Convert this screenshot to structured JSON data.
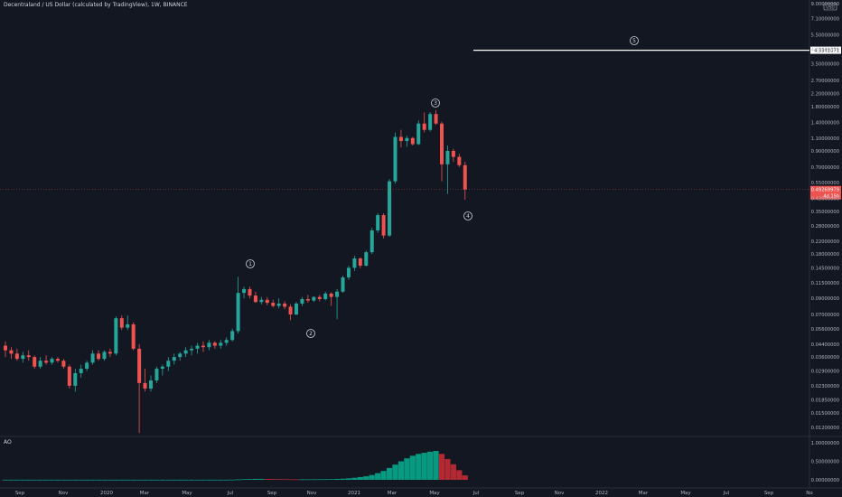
{
  "header": {
    "symbol_title": "Decentraland / US Dollar (calculated by TradingView), 1W, BINANCE"
  },
  "scale_mode_badge": "USD",
  "indicator": {
    "label": "AO"
  },
  "colors": {
    "background": "#131722",
    "up": "#26a69a",
    "down": "#ef5350",
    "ao_up": "#089981",
    "ao_down": "#b22833",
    "target_line": "#ffffff",
    "price_label_bg": "#ef5350"
  },
  "chart_data": {
    "type": "candlestick",
    "timeframe": "1W",
    "y_scale": "log",
    "y_axis_ticks": [
      "9.00000000",
      "7.10000000",
      "5.50000000",
      "4.40000000",
      "3.50000000",
      "2.70000000",
      "2.20000000",
      "1.80000000",
      "1.40000000",
      "1.10000000",
      "0.90000000",
      "0.70000000",
      "0.55000000",
      "0.43000000",
      "0.35000000",
      "0.28000000",
      "0.22000000",
      "0.18000000",
      "0.14500000",
      "0.11500000",
      "0.09000000",
      "0.07000000",
      "0.05600000",
      "0.04400000",
      "0.03600000",
      "0.02900000",
      "0.02300000",
      "0.01850000",
      "0.01500000",
      "0.01200000"
    ],
    "x_axis_ticks": [
      "Sep",
      "Nov",
      "2020",
      "Mar",
      "May",
      "Jul",
      "Sep",
      "Nov",
      "2021",
      "Mar",
      "May",
      "Jul",
      "Sep",
      "Nov",
      "2022",
      "Mar",
      "May",
      "Jul",
      "Sep",
      "No"
    ],
    "current_price": {
      "value": "0.49269979",
      "change": "4d 15h"
    },
    "target_level": {
      "value": "4.3341071",
      "price": 4.334
    },
    "wave_labels": [
      {
        "label": "1",
        "price": 0.156
      },
      {
        "label": "2",
        "price": 0.06
      },
      {
        "label": "3",
        "price": 1.58
      },
      {
        "label": "4",
        "price": 0.37
      },
      {
        "label": "5",
        "price": 4.8
      }
    ],
    "candles": [
      [
        0.043,
        0.046,
        0.036,
        0.04
      ],
      [
        0.04,
        0.042,
        0.035,
        0.038
      ],
      [
        0.038,
        0.041,
        0.034,
        0.035
      ],
      [
        0.035,
        0.039,
        0.033,
        0.037
      ],
      [
        0.037,
        0.04,
        0.034,
        0.036
      ],
      [
        0.036,
        0.037,
        0.03,
        0.031
      ],
      [
        0.031,
        0.036,
        0.03,
        0.034
      ],
      [
        0.034,
        0.037,
        0.032,
        0.033
      ],
      [
        0.033,
        0.036,
        0.032,
        0.035
      ],
      [
        0.035,
        0.036,
        0.033,
        0.034
      ],
      [
        0.034,
        0.035,
        0.03,
        0.031
      ],
      [
        0.031,
        0.032,
        0.022,
        0.023
      ],
      [
        0.023,
        0.03,
        0.021,
        0.028
      ],
      [
        0.028,
        0.032,
        0.026,
        0.03
      ],
      [
        0.03,
        0.034,
        0.029,
        0.033
      ],
      [
        0.033,
        0.04,
        0.032,
        0.038
      ],
      [
        0.038,
        0.04,
        0.034,
        0.035
      ],
      [
        0.035,
        0.04,
        0.034,
        0.039
      ],
      [
        0.039,
        0.041,
        0.036,
        0.038
      ],
      [
        0.038,
        0.068,
        0.037,
        0.066
      ],
      [
        0.066,
        0.069,
        0.055,
        0.057
      ],
      [
        0.057,
        0.069,
        0.055,
        0.06
      ],
      [
        0.06,
        0.062,
        0.04,
        0.041
      ],
      [
        0.041,
        0.044,
        0.011,
        0.024
      ],
      [
        0.024,
        0.03,
        0.021,
        0.022
      ],
      [
        0.022,
        0.027,
        0.021,
        0.025
      ],
      [
        0.025,
        0.031,
        0.024,
        0.03
      ],
      [
        0.03,
        0.032,
        0.027,
        0.031
      ],
      [
        0.031,
        0.036,
        0.029,
        0.034
      ],
      [
        0.034,
        0.038,
        0.032,
        0.036
      ],
      [
        0.036,
        0.039,
        0.034,
        0.038
      ],
      [
        0.038,
        0.042,
        0.036,
        0.04
      ],
      [
        0.04,
        0.043,
        0.037,
        0.041
      ],
      [
        0.041,
        0.045,
        0.038,
        0.043
      ],
      [
        0.043,
        0.046,
        0.039,
        0.042
      ],
      [
        0.042,
        0.047,
        0.04,
        0.045
      ],
      [
        0.045,
        0.046,
        0.041,
        0.043
      ],
      [
        0.043,
        0.047,
        0.041,
        0.045
      ],
      [
        0.045,
        0.049,
        0.043,
        0.047
      ],
      [
        0.047,
        0.056,
        0.046,
        0.054
      ],
      [
        0.054,
        0.126,
        0.052,
        0.098
      ],
      [
        0.098,
        0.108,
        0.09,
        0.104
      ],
      [
        0.104,
        0.108,
        0.09,
        0.094
      ],
      [
        0.094,
        0.1,
        0.084,
        0.085
      ],
      [
        0.085,
        0.092,
        0.082,
        0.088
      ],
      [
        0.088,
        0.092,
        0.081,
        0.084
      ],
      [
        0.084,
        0.088,
        0.078,
        0.08
      ],
      [
        0.08,
        0.09,
        0.077,
        0.083
      ],
      [
        0.083,
        0.086,
        0.076,
        0.079
      ],
      [
        0.079,
        0.082,
        0.064,
        0.07
      ],
      [
        0.07,
        0.085,
        0.069,
        0.083
      ],
      [
        0.083,
        0.092,
        0.08,
        0.089
      ],
      [
        0.089,
        0.095,
        0.084,
        0.087
      ],
      [
        0.087,
        0.093,
        0.085,
        0.092
      ],
      [
        0.092,
        0.095,
        0.086,
        0.089
      ],
      [
        0.089,
        0.1,
        0.087,
        0.097
      ],
      [
        0.097,
        0.099,
        0.08,
        0.092
      ],
      [
        0.092,
        0.104,
        0.065,
        0.1
      ],
      [
        0.1,
        0.128,
        0.098,
        0.125
      ],
      [
        0.125,
        0.15,
        0.12,
        0.145
      ],
      [
        0.145,
        0.175,
        0.138,
        0.168
      ],
      [
        0.168,
        0.17,
        0.144,
        0.15
      ],
      [
        0.15,
        0.19,
        0.148,
        0.185
      ],
      [
        0.185,
        0.27,
        0.18,
        0.26
      ],
      [
        0.26,
        0.34,
        0.25,
        0.33
      ],
      [
        0.33,
        0.34,
        0.23,
        0.24
      ],
      [
        0.24,
        0.58,
        0.235,
        0.56
      ],
      [
        0.56,
        1.2,
        0.54,
        1.12
      ],
      [
        1.12,
        1.25,
        0.95,
        1.05
      ],
      [
        1.05,
        1.14,
        0.96,
        1.1
      ],
      [
        1.1,
        1.12,
        0.98,
        1.0
      ],
      [
        1.0,
        1.45,
        0.99,
        1.38
      ],
      [
        1.38,
        1.64,
        1.2,
        1.25
      ],
      [
        1.25,
        1.65,
        1.22,
        1.6
      ],
      [
        1.6,
        1.7,
        1.35,
        1.38
      ],
      [
        1.38,
        1.42,
        0.56,
        0.73
      ],
      [
        0.73,
        0.98,
        0.46,
        0.9
      ],
      [
        0.9,
        0.93,
        0.76,
        0.82
      ],
      [
        0.82,
        0.86,
        0.7,
        0.72
      ],
      [
        0.72,
        0.76,
        0.42,
        0.493
      ]
    ],
    "ao": {
      "y_axis_ticks": [
        "1.00000000",
        "0.50000000",
        "0.00000000"
      ],
      "ylim": [
        0,
        1
      ],
      "values": [
        0.004,
        0.004,
        0.004,
        0.004,
        0.004,
        0.004,
        0.004,
        0.004,
        0.004,
        0.004,
        0.004,
        0.004,
        0.004,
        0.004,
        0.004,
        0.004,
        0.004,
        0.004,
        0.004,
        0.004,
        0.004,
        0.004,
        0.004,
        0.004,
        0.004,
        0.004,
        0.004,
        0.004,
        0.004,
        0.004,
        0.004,
        0.004,
        0.004,
        0.004,
        0.004,
        0.004,
        0.004,
        0.004,
        0.004,
        0.006,
        0.012,
        0.018,
        0.022,
        0.026,
        0.026,
        0.024,
        0.022,
        0.02,
        0.018,
        0.016,
        0.014,
        0.014,
        0.015,
        0.016,
        0.017,
        0.018,
        0.02,
        0.025,
        0.03,
        0.04,
        0.055,
        0.075,
        0.095,
        0.13,
        0.18,
        0.24,
        0.32,
        0.41,
        0.5,
        0.58,
        0.65,
        0.7,
        0.73,
        0.76,
        0.78,
        0.7,
        0.56,
        0.42,
        0.26,
        0.12
      ]
    }
  }
}
